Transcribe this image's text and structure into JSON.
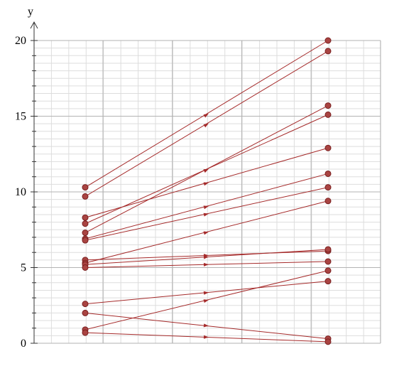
{
  "chart_data": {
    "type": "line",
    "ylabel": "y",
    "xlabel": "",
    "ylim": [
      0,
      20
    ],
    "y_ticks": [
      "0",
      "5",
      "10",
      "15",
      "20"
    ],
    "grid": true,
    "x_positions": [
      "left",
      "right"
    ],
    "colors": {
      "series": "#a52a2a",
      "point_fill": "#a94442",
      "grid_major": "#b3b3b3",
      "grid_minor": "#dddddd"
    },
    "series": [
      {
        "values": [
          10.3,
          20.0
        ]
      },
      {
        "values": [
          9.7,
          19.3
        ]
      },
      {
        "values": [
          8.3,
          12.9
        ]
      },
      {
        "values": [
          7.9,
          15.1
        ]
      },
      {
        "values": [
          7.3,
          15.7
        ]
      },
      {
        "values": [
          6.9,
          11.2
        ]
      },
      {
        "values": [
          6.8,
          10.3
        ]
      },
      {
        "values": [
          5.5,
          6.1
        ]
      },
      {
        "values": [
          5.3,
          9.4
        ]
      },
      {
        "values": [
          5.2,
          6.2
        ]
      },
      {
        "values": [
          5.0,
          5.4
        ]
      },
      {
        "values": [
          2.6,
          4.1
        ]
      },
      {
        "values": [
          2.0,
          0.3
        ]
      },
      {
        "values": [
          0.9,
          4.8
        ]
      },
      {
        "values": [
          0.7,
          0.1
        ]
      }
    ]
  }
}
